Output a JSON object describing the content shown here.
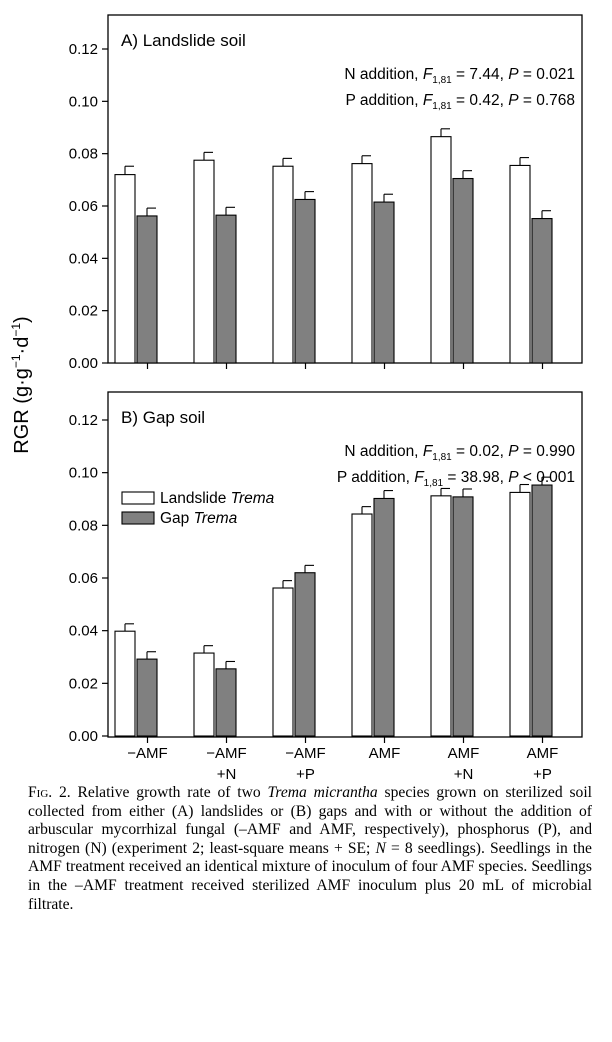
{
  "chart_data": [
    {
      "type": "bar",
      "title": "A) Landslide soil",
      "stats": [
        {
          "label": "N addition, ",
          "f": "F",
          "fsub": "1,81",
          "fval": " = 7.44, ",
          "p": "P",
          "pval": " = 0.021"
        },
        {
          "label": "P addition, ",
          "f": "F",
          "fsub": "1,81",
          "fval": " = 0.42, ",
          "p": "P",
          "pval": " = 0.768"
        }
      ],
      "ylim": [
        0,
        0.12
      ],
      "yticks": [
        "0.00",
        "0.02",
        "0.04",
        "0.06",
        "0.08",
        "0.10",
        "0.12"
      ],
      "categories": [
        "−AMF",
        "−AMF +N",
        "−AMF +P",
        "AMF",
        "AMF +N",
        "AMF +P"
      ],
      "series": [
        {
          "values": [
            0.072,
            0.0775,
            0.0752,
            0.0762,
            0.0865,
            0.0755
          ],
          "se": [
            0.0032,
            0.003,
            0.003,
            0.003,
            0.003,
            0.003
          ],
          "color": "#ffffff"
        },
        {
          "values": [
            0.0562,
            0.0565,
            0.0625,
            0.0615,
            0.0705,
            0.0552
          ],
          "se": [
            0.003,
            0.003,
            0.003,
            0.003,
            0.003,
            0.003
          ],
          "color": "#808080"
        }
      ]
    },
    {
      "type": "bar",
      "title": "B) Gap soil",
      "stats": [
        {
          "label": "N addition, ",
          "f": "F",
          "fsub": "1,81",
          "fval": " = 0.02, ",
          "p": "P",
          "pval": " = 0.990"
        },
        {
          "label": "P addition, ",
          "f": "F",
          "fsub": "1,81",
          "fval": " = 38.98, ",
          "p": "P",
          "pval": " < 0.001"
        }
      ],
      "ylim": [
        0,
        0.12
      ],
      "yticks": [
        "0.00",
        "0.02",
        "0.04",
        "0.06",
        "0.08",
        "0.10",
        "0.12"
      ],
      "categories": [
        "−AMF",
        "−AMF +N",
        "−AMF +P",
        "AMF",
        "AMF +N",
        "AMF +P"
      ],
      "series": [
        {
          "name": "Landslide Trema",
          "values": [
            0.0398,
            0.0315,
            0.0562,
            0.0843,
            0.0912,
            0.0925
          ],
          "se": [
            0.0028,
            0.0028,
            0.0028,
            0.0028,
            0.0028,
            0.003
          ],
          "color": "#ffffff"
        },
        {
          "name": "Gap Trema",
          "values": [
            0.0292,
            0.0255,
            0.062,
            0.0902,
            0.0908,
            0.0953
          ],
          "se": [
            0.0028,
            0.0028,
            0.0028,
            0.003,
            0.003,
            0.003
          ],
          "color": "#808080"
        }
      ],
      "legend": [
        {
          "plain": "Landslide ",
          "italic": "Trema"
        },
        {
          "plain": "Gap ",
          "italic": "Trema"
        }
      ],
      "legend_position": "upper-left"
    }
  ],
  "ylabel": {
    "main": "RGR (g·g",
    "sup1": "−1",
    "mid": "·d",
    "sup2": "−1",
    "end": ")"
  },
  "xticks": [
    [
      "−AMF"
    ],
    [
      "−AMF",
      "+N"
    ],
    [
      "−AMF",
      "+P"
    ],
    [
      "AMF"
    ],
    [
      "AMF",
      "+N"
    ],
    [
      "AMF",
      "+P"
    ]
  ],
  "caption": {
    "fig": "Fig. 2.",
    "t1": "  Relative growth rate of two ",
    "i1": "Trema micrantha",
    "t2": " species grown on sterilized soil collected from either (A) landslides or (B) gaps and with or without the addition of arbuscular mycorrhizal fungal (–AMF and AMF, respectively), phosphorus (P), and nitrogen (N) (experiment 2; least-square means + SE; ",
    "i2": "N",
    "t3": " = 8 seedlings). Seedlings in the AMF treatment received an identical mixture of inoculum of four AMF species. Seedlings in the –AMF treatment received sterilized AMF inoculum plus 20 mL of microbial filtrate."
  }
}
